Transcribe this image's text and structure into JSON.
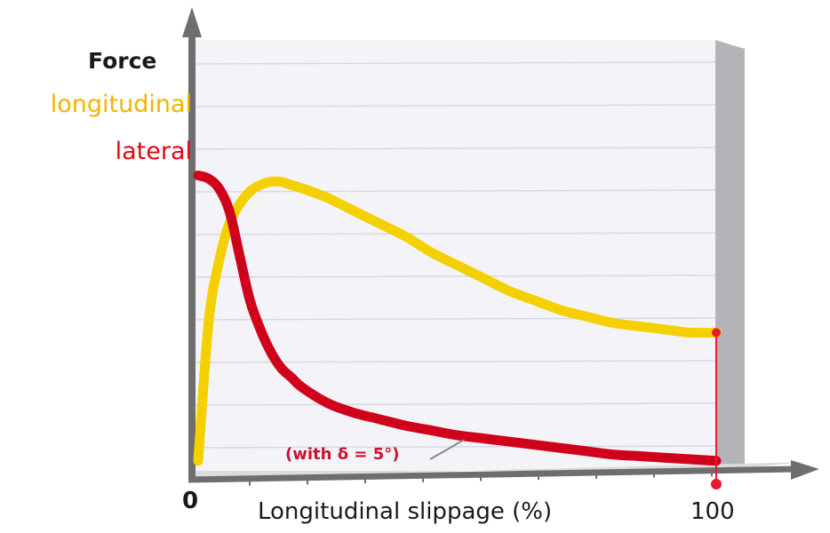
{
  "chart_data": {
    "type": "line",
    "title": "",
    "ylabel": "Force",
    "xlabel": "Longitudinal slippage (%)",
    "x_tick_labels": [
      "0",
      "100"
    ],
    "xlim": [
      0,
      100
    ],
    "ylim": [
      0,
      1
    ],
    "grid": true,
    "series": [
      {
        "name": "longitudinal",
        "color": "#f5d000",
        "x": [
          0,
          2,
          4,
          6,
          8,
          10,
          12,
          14,
          16,
          18,
          20,
          25,
          30,
          35,
          40,
          45,
          50,
          55,
          60,
          65,
          70,
          75,
          80,
          85,
          90,
          95,
          100
        ],
        "y": [
          0.02,
          0.45,
          0.64,
          0.76,
          0.82,
          0.86,
          0.88,
          0.89,
          0.89,
          0.88,
          0.87,
          0.84,
          0.8,
          0.76,
          0.72,
          0.67,
          0.63,
          0.59,
          0.55,
          0.52,
          0.49,
          0.47,
          0.45,
          0.44,
          0.43,
          0.42,
          0.42
        ]
      },
      {
        "name": "lateral",
        "color": "#d0021b",
        "x": [
          0,
          2,
          4,
          6,
          8,
          10,
          12,
          14,
          16,
          18,
          20,
          25,
          30,
          35,
          40,
          45,
          50,
          55,
          60,
          65,
          70,
          75,
          80,
          85,
          90,
          95,
          100
        ],
        "y": [
          0.91,
          0.9,
          0.87,
          0.8,
          0.66,
          0.52,
          0.43,
          0.36,
          0.31,
          0.28,
          0.25,
          0.2,
          0.17,
          0.15,
          0.13,
          0.115,
          0.1,
          0.09,
          0.08,
          0.07,
          0.06,
          0.05,
          0.04,
          0.035,
          0.03,
          0.025,
          0.02
        ]
      }
    ],
    "annotation": "(with δ = 5°)",
    "legend_placement": "left"
  },
  "labels": {
    "force": "Force",
    "longitudinal": "longitudinal",
    "lateral": "lateral",
    "x_zero": "0",
    "x_axis": "Longitudinal slippage (%)",
    "x_hundred": "100",
    "annotation": "(with δ = 5°)"
  }
}
